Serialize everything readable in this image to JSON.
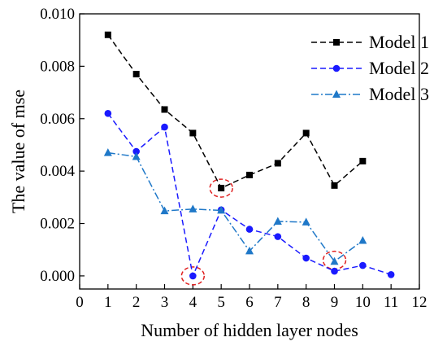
{
  "chart_data": {
    "type": "line",
    "title": "",
    "xlabel": "Number of hidden layer nodes",
    "ylabel": "The value of mse",
    "xlim": [
      0,
      12
    ],
    "ylim": [
      -0.0005,
      0.01
    ],
    "xticks": [
      "0",
      "1",
      "2",
      "3",
      "4",
      "5",
      "6",
      "7",
      "8",
      "9",
      "10",
      "11",
      "12"
    ],
    "yticks": [
      "0.000",
      "0.002",
      "0.004",
      "0.006",
      "0.008",
      "0.010"
    ],
    "grid": false,
    "legend_position": "top-right",
    "series": [
      {
        "name": "Model 1",
        "color": "#000000",
        "line_style": "dashed",
        "marker": "square",
        "x": [
          1,
          2,
          3,
          4,
          5,
          6,
          7,
          8,
          9,
          10
        ],
        "y": [
          0.0092,
          0.0077,
          0.00635,
          0.00545,
          0.00335,
          0.00385,
          0.0043,
          0.00545,
          0.00345,
          0.00438
        ]
      },
      {
        "name": "Model 2",
        "color": "#1a1aff",
        "line_style": "dashed",
        "marker": "circle",
        "x": [
          1,
          2,
          3,
          4,
          5,
          6,
          7,
          8,
          9,
          10,
          11
        ],
        "y": [
          0.0062,
          0.00475,
          0.00568,
          0.0,
          0.00252,
          0.00178,
          0.0015,
          0.00068,
          0.00018,
          0.0004,
          5e-05
        ]
      },
      {
        "name": "Model 3",
        "color": "#1f78c8",
        "line_style": "dashdot",
        "marker": "triangle",
        "x": [
          1,
          2,
          3,
          4,
          5,
          6,
          7,
          8,
          9,
          10
        ],
        "y": [
          0.0047,
          0.00455,
          0.00248,
          0.00255,
          0.0025,
          0.00095,
          0.00208,
          0.00205,
          0.00055,
          0.00135
        ]
      }
    ],
    "annotations": [
      {
        "type": "dashed-circle",
        "color": "#e02020",
        "x": 4,
        "y": 0.0
      },
      {
        "type": "dashed-circle",
        "color": "#e02020",
        "x": 5,
        "y": 0.00335
      },
      {
        "type": "dashed-circle",
        "color": "#e02020",
        "x": 9,
        "y": 0.0006
      }
    ]
  }
}
